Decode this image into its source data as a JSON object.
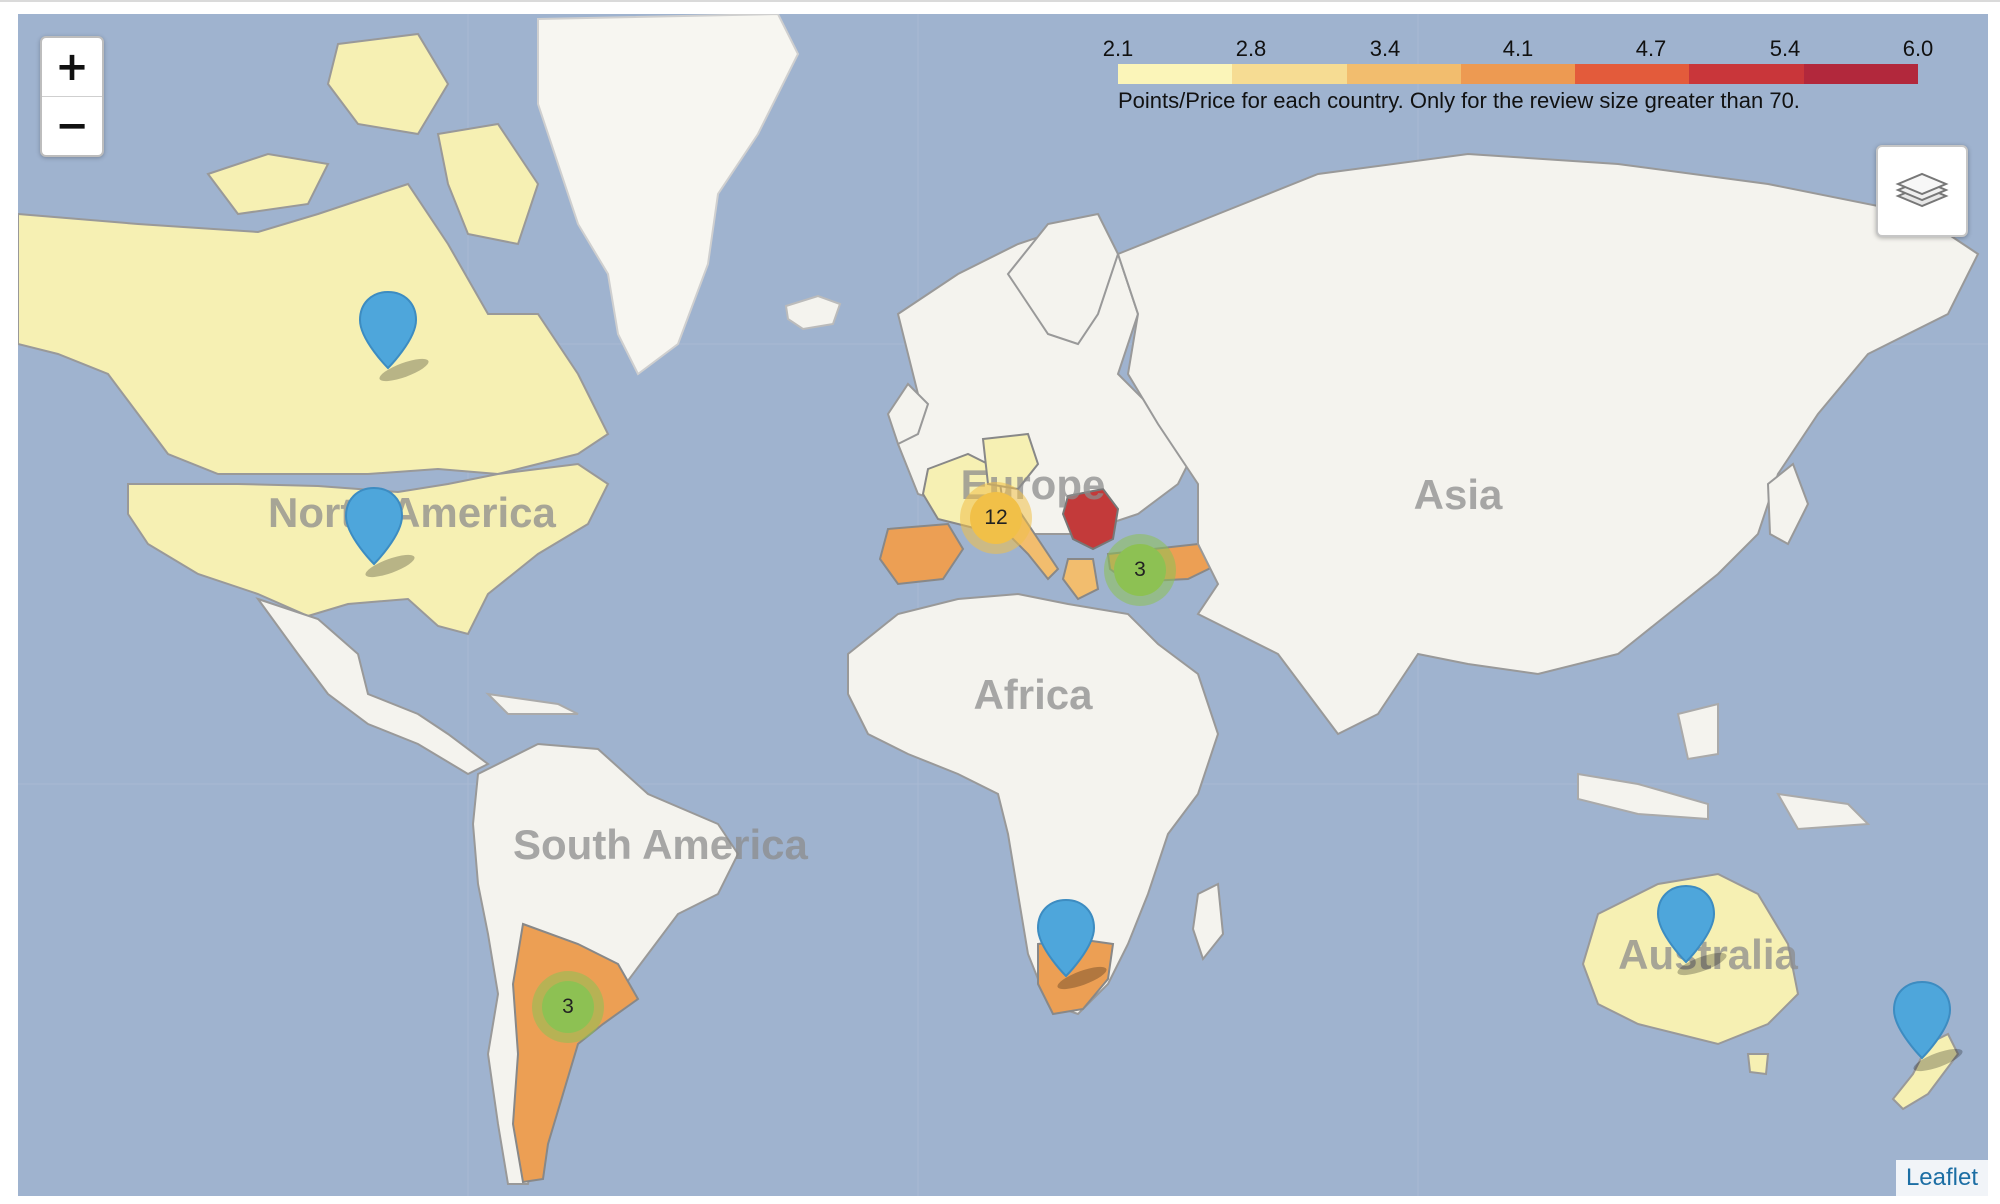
{
  "controls": {
    "zoom_in": "+",
    "zoom_out": "−",
    "layers_icon": "layers-icon"
  },
  "legend": {
    "ticks": [
      "2.1",
      "2.8",
      "3.4",
      "4.1",
      "4.7",
      "5.4",
      "6.0"
    ],
    "colors": [
      "#fbf5b9",
      "#f6dc93",
      "#f2bd6e",
      "#ed9a52",
      "#e35b3b",
      "#c9363a",
      "#b2283c"
    ],
    "caption": "Points/Price for each country. Only for the review size greater than 70."
  },
  "continents": {
    "north_america": "North America",
    "south_america": "South America",
    "europe": "Europe",
    "asia": "Asia",
    "africa": "Africa",
    "australia": "Australia"
  },
  "clusters": [
    {
      "label": "12",
      "color": "#f1c048"
    },
    {
      "label": "3",
      "color": "#8dc153"
    },
    {
      "label": "3",
      "color": "#8dc153"
    }
  ],
  "pins": [
    "north-canada-pin",
    "usa-pin",
    "south-africa-pin",
    "australia-pin",
    "new-zealand-pin"
  ],
  "attribution": "Leaflet",
  "colors": {
    "water": "#9fb3cf",
    "land": "#f4f3ee",
    "pin": "#4ea6db"
  }
}
